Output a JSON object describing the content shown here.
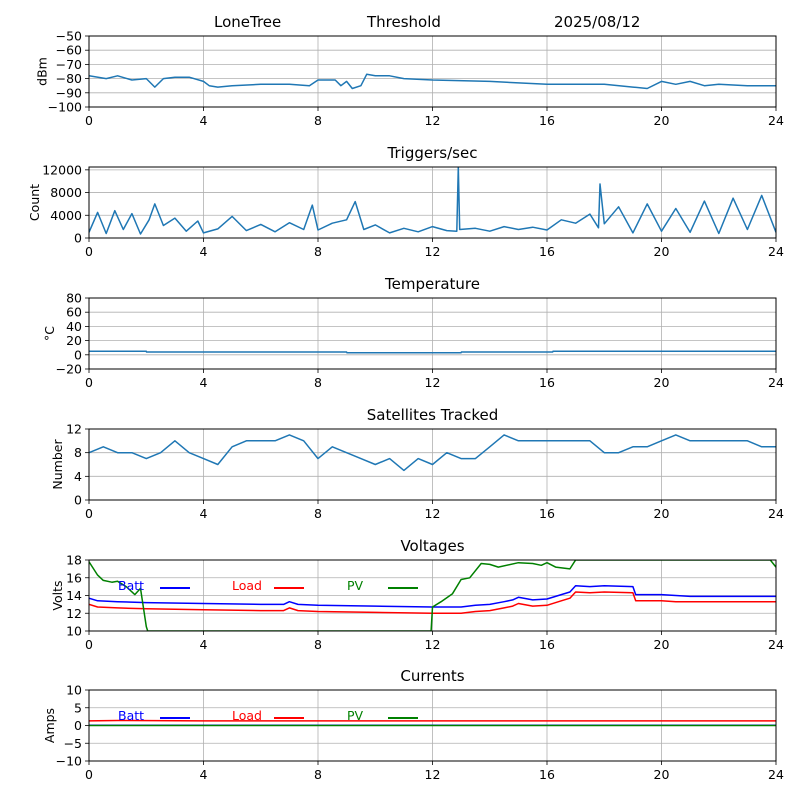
{
  "header": {
    "station": "LoneTree",
    "mode": "Threshold",
    "date": "2025/08/12"
  },
  "colors": {
    "series": "#1f77b4",
    "grid": "#b0b0b0",
    "batt": "#0000ff",
    "load": "#ff0000",
    "pv": "#008000"
  },
  "chart_data": [
    {
      "type": "line",
      "title": "",
      "ylabel": "dBm",
      "xlim": [
        0,
        24
      ],
      "ylim": [
        -100,
        -50
      ],
      "xticks": [
        0,
        4,
        8,
        12,
        16,
        20,
        24
      ],
      "yticks": [
        -100,
        -90,
        -80,
        -70,
        -60,
        -50
      ],
      "grid": true,
      "series": [
        {
          "color": "#1f77b4",
          "x": [
            0,
            0.6,
            1,
            1.5,
            2,
            2.3,
            2.6,
            3,
            3.5,
            4,
            4.2,
            4.5,
            5,
            6,
            7,
            7.7,
            8,
            8.6,
            8.8,
            9,
            9.2,
            9.5,
            9.7,
            10,
            10.5,
            11,
            12,
            14,
            15,
            16,
            17,
            18,
            19,
            19.5,
            20,
            20.5,
            21,
            21.5,
            22,
            23,
            24
          ],
          "y": [
            -78,
            -80,
            -78,
            -81,
            -80,
            -86,
            -80,
            -79,
            -79,
            -82,
            -85,
            -86,
            -85,
            -84,
            -84,
            -85,
            -81,
            -81,
            -85,
            -82,
            -87,
            -85,
            -77,
            -78,
            -78,
            -80,
            -81,
            -82,
            -83,
            -84,
            -84,
            -84,
            -86,
            -87,
            -82,
            -84,
            -82,
            -85,
            -84,
            -85,
            -85
          ]
        }
      ]
    },
    {
      "type": "line",
      "title": "Triggers/sec",
      "ylabel": "Count",
      "xlim": [
        0,
        24
      ],
      "ylim": [
        0,
        12500
      ],
      "xticks": [
        0,
        4,
        8,
        12,
        16,
        20,
        24
      ],
      "yticks": [
        0,
        4000,
        8000,
        12000
      ],
      "grid": true,
      "series": [
        {
          "color": "#1f77b4",
          "x": [
            0,
            0.3,
            0.6,
            0.9,
            1.2,
            1.5,
            1.8,
            2.1,
            2.3,
            2.6,
            3,
            3.4,
            3.8,
            4,
            4.5,
            5,
            5.5,
            6,
            6.5,
            7,
            7.5,
            7.8,
            8,
            8.5,
            9,
            9.3,
            9.6,
            10,
            10.5,
            11,
            11.5,
            12,
            12.5,
            12.85,
            12.9,
            12.95,
            13.5,
            14,
            14.5,
            15,
            15.5,
            16,
            16.5,
            17,
            17.5,
            17.8,
            17.85,
            18,
            18.5,
            19,
            19.5,
            20,
            20.5,
            21,
            21.5,
            22,
            22.5,
            23,
            23.5,
            24
          ],
          "y": [
            1000,
            4500,
            800,
            4800,
            1500,
            4300,
            700,
            3200,
            6000,
            2200,
            3500,
            1200,
            3000,
            900,
            1600,
            3800,
            1300,
            2400,
            1100,
            2700,
            1500,
            5800,
            1400,
            2600,
            3200,
            6400,
            1500,
            2300,
            900,
            1700,
            1100,
            2000,
            1300,
            1200,
            12500,
            1500,
            1700,
            1200,
            2000,
            1500,
            1900,
            1400,
            3200,
            2600,
            4200,
            1800,
            9500,
            2500,
            5500,
            900,
            6000,
            1200,
            5200,
            1000,
            6500,
            800,
            7000,
            1500,
            7500,
            1000
          ]
        }
      ]
    },
    {
      "type": "line",
      "title": "Temperature",
      "ylabel": "°C",
      "xlim": [
        0,
        24
      ],
      "ylim": [
        -20,
        80
      ],
      "xticks": [
        0,
        4,
        8,
        12,
        16,
        20,
        24
      ],
      "yticks": [
        -20,
        0,
        20,
        40,
        60,
        80
      ],
      "grid": true,
      "series": [
        {
          "color": "#1f77b4",
          "x": [
            0,
            2,
            2.01,
            9,
            9.01,
            13,
            13.01,
            16.2,
            16.21,
            24
          ],
          "y": [
            5,
            5,
            4,
            4,
            3,
            3,
            4,
            4,
            5,
            5
          ]
        }
      ]
    },
    {
      "type": "line",
      "title": "Satellites Tracked",
      "ylabel": "Number",
      "xlim": [
        0,
        24
      ],
      "ylim": [
        0,
        12
      ],
      "xticks": [
        0,
        4,
        8,
        12,
        16,
        20,
        24
      ],
      "yticks": [
        0,
        4,
        8,
        12
      ],
      "grid": true,
      "series": [
        {
          "color": "#1f77b4",
          "x": [
            0,
            0.5,
            1,
            1.5,
            2,
            2.5,
            3,
            3.5,
            4,
            4.5,
            5,
            5.5,
            6,
            6.5,
            7,
            7.5,
            8,
            8.5,
            9,
            9.5,
            10,
            10.5,
            11,
            11.5,
            12,
            12.5,
            13,
            13.5,
            14,
            14.5,
            15,
            15.5,
            16,
            16.5,
            17,
            17.5,
            18,
            18.5,
            19,
            19.5,
            20,
            20.5,
            21,
            21.5,
            22,
            22.5,
            23,
            23.5,
            24
          ],
          "y": [
            8,
            9,
            8,
            8,
            7,
            8,
            10,
            8,
            7,
            6,
            9,
            10,
            10,
            10,
            11,
            10,
            7,
            9,
            8,
            7,
            6,
            7,
            5,
            7,
            6,
            8,
            7,
            7,
            9,
            11,
            10,
            10,
            10,
            10,
            10,
            10,
            8,
            8,
            9,
            9,
            10,
            11,
            10,
            10,
            10,
            10,
            10,
            9,
            9
          ]
        }
      ]
    },
    {
      "type": "line",
      "title": "Voltages",
      "ylabel": "Volts",
      "xlim": [
        0,
        24
      ],
      "ylim": [
        10,
        18
      ],
      "xticks": [
        0,
        4,
        8,
        12,
        16,
        20,
        24
      ],
      "yticks": [
        10,
        12,
        14,
        16,
        18
      ],
      "grid": true,
      "legend": "top-left",
      "series": [
        {
          "name": "Batt",
          "color": "#0000ff",
          "x": [
            0,
            0.3,
            1,
            2,
            4,
            6,
            6.8,
            7,
            7.3,
            8,
            10,
            12,
            13,
            13.5,
            14,
            14.5,
            14.8,
            15,
            15.5,
            16,
            16.5,
            16.8,
            17,
            17.5,
            18,
            19,
            19.1,
            20,
            20.5,
            21,
            24
          ],
          "y": [
            13.7,
            13.4,
            13.3,
            13.2,
            13.1,
            13.0,
            13.0,
            13.3,
            13.0,
            12.9,
            12.8,
            12.7,
            12.7,
            12.9,
            13.0,
            13.3,
            13.5,
            13.8,
            13.5,
            13.6,
            14.1,
            14.4,
            15.1,
            15.0,
            15.1,
            15.0,
            14.1,
            14.1,
            14.0,
            13.9,
            13.9
          ]
        },
        {
          "name": "Load",
          "color": "#ff0000",
          "x": [
            0,
            0.3,
            1,
            2,
            4,
            6,
            6.8,
            7,
            7.3,
            8,
            10,
            12,
            13,
            13.5,
            14,
            14.5,
            14.8,
            15,
            15.5,
            16,
            16.5,
            16.8,
            17,
            17.5,
            18,
            19,
            19.1,
            20,
            20.5,
            21,
            24
          ],
          "y": [
            13.0,
            12.7,
            12.6,
            12.5,
            12.4,
            12.3,
            12.3,
            12.6,
            12.3,
            12.2,
            12.1,
            12.0,
            12.0,
            12.2,
            12.3,
            12.6,
            12.8,
            13.1,
            12.8,
            12.9,
            13.4,
            13.7,
            14.4,
            14.3,
            14.4,
            14.3,
            13.4,
            13.4,
            13.3,
            13.3,
            13.3
          ]
        },
        {
          "name": "PV",
          "color": "#008000",
          "x": [
            0,
            0.3,
            0.5,
            0.8,
            1,
            1.3,
            1.6,
            1.8,
            2.0,
            2.05,
            11.95,
            12,
            12.3,
            12.7,
            13,
            13.3,
            13.7,
            14,
            14.3,
            15,
            15.5,
            15.8,
            16,
            16.3,
            16.8,
            17.0,
            23.8,
            24
          ],
          "y": [
            17.8,
            16.3,
            15.7,
            15.5,
            15.6,
            15.0,
            14.1,
            14.8,
            10.5,
            10.0,
            10.0,
            12.7,
            13.3,
            14.2,
            15.8,
            16.0,
            17.6,
            17.5,
            17.2,
            17.7,
            17.6,
            17.4,
            17.7,
            17.2,
            17.0,
            18.0,
            18.0,
            17.2
          ]
        }
      ]
    },
    {
      "type": "line",
      "title": "Currents",
      "ylabel": "Amps",
      "xlim": [
        0,
        24
      ],
      "ylim": [
        -10,
        10
      ],
      "xticks": [
        0,
        4,
        8,
        12,
        16,
        20,
        24
      ],
      "yticks": [
        -10,
        -5,
        0,
        5,
        10
      ],
      "grid": true,
      "legend": "top-left",
      "series": [
        {
          "name": "Batt",
          "color": "#0000ff",
          "x": [
            0,
            24
          ],
          "y": [
            0.05,
            0.05
          ]
        },
        {
          "name": "Load",
          "color": "#ff0000",
          "x": [
            0,
            1,
            4,
            8,
            12,
            16,
            20,
            24
          ],
          "y": [
            1.3,
            1.4,
            1.3,
            1.3,
            1.3,
            1.3,
            1.3,
            1.3
          ]
        },
        {
          "name": "PV",
          "color": "#008000",
          "x": [
            0,
            24
          ],
          "y": [
            0.0,
            0.0
          ]
        }
      ]
    }
  ]
}
